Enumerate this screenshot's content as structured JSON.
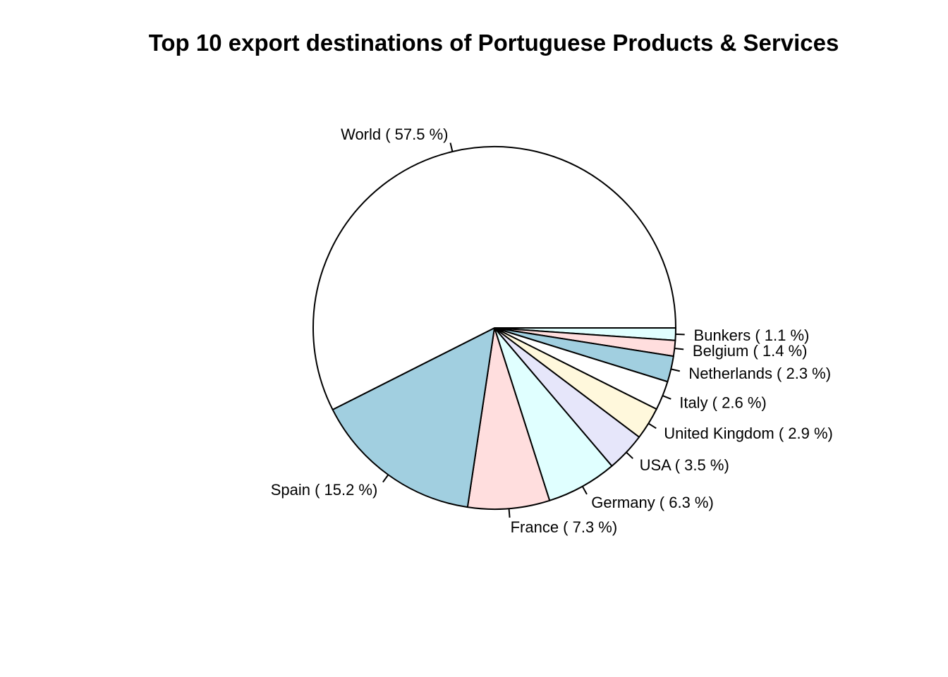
{
  "chart_data": {
    "type": "pie",
    "title": "Top 10 export destinations of Portuguese Products & Services",
    "unit": "%",
    "slices": [
      {
        "label": "Bunkers ( 1.1 %)",
        "name": "Bunkers",
        "value": 1.1,
        "color": "#e0ffff"
      },
      {
        "label": "Belgium ( 1.4 %)",
        "name": "Belgium",
        "value": 1.4,
        "color": "#ffdede"
      },
      {
        "label": "Netherlands ( 2.3 %)",
        "name": "Netherlands",
        "value": 2.3,
        "color": "#a1cfe0"
      },
      {
        "label": "Italy ( 2.6 %)",
        "name": "Italy",
        "value": 2.6,
        "color": "#ffffff"
      },
      {
        "label": "United Kingdom ( 2.9 %)",
        "name": "United Kingdom",
        "value": 2.9,
        "color": "#fff8dc"
      },
      {
        "label": "USA ( 3.5 %)",
        "name": "USA",
        "value": 3.5,
        "color": "#e6e6fa"
      },
      {
        "label": "Germany ( 6.3 %)",
        "name": "Germany",
        "value": 6.3,
        "color": "#e0ffff"
      },
      {
        "label": "France ( 7.3 %)",
        "name": "France",
        "value": 7.3,
        "color": "#ffdede"
      },
      {
        "label": "Spain ( 15.2 %)",
        "name": "Spain",
        "value": 15.2,
        "color": "#a1cfe0"
      },
      {
        "label": "World ( 57.5 %)",
        "name": "World",
        "value": 57.5,
        "color": "#ffffff"
      }
    ],
    "direction": "clockwise",
    "start": "3 o'clock"
  }
}
